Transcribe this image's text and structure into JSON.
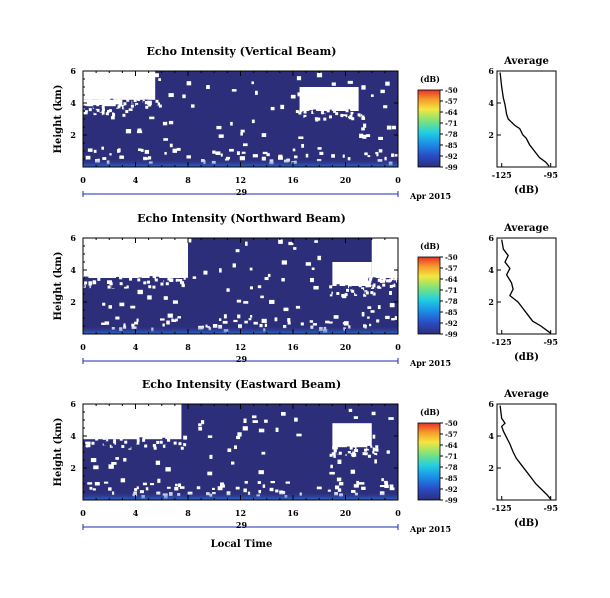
{
  "chart_data": [
    {
      "type": "heatmap",
      "title": "Echo Intensity (Vertical Beam)",
      "ylabel": "Height (km)",
      "x_ticks": [
        "0",
        "4",
        "8",
        "12",
        "16",
        "20",
        "0"
      ],
      "y_ticks": [
        "6",
        "4",
        "2"
      ],
      "xlim": [
        0,
        24
      ],
      "ylim": [
        0,
        6
      ],
      "date_label": "29",
      "month_label": "Apr 2015",
      "colorbar": {
        "label": "(dB)",
        "ticks": [
          "-50",
          "-57",
          "-64",
          "-71",
          "-78",
          "-85",
          "-92",
          "-99"
        ],
        "range": [
          -99,
          -50
        ]
      },
      "dominant_value_db": -99,
      "no_data": "white",
      "no_data_blocks": [
        {
          "x": [
            0,
            5.5
          ],
          "y": [
            4.2,
            6
          ]
        },
        {
          "x": [
            16.5,
            21
          ],
          "y": [
            3.5,
            5
          ]
        },
        {
          "x": [
            0,
            3
          ],
          "y": [
            3.8,
            4.2
          ]
        }
      ],
      "bottom_layer_km": [
        0,
        0.5
      ],
      "average_profile": {
        "title": "Average",
        "xlabel": "(dB)",
        "x_ticks": [
          "-125",
          "-95"
        ],
        "y_ticks": [
          "6",
          "4",
          "2"
        ],
        "xlim": [
          -125,
          -95
        ],
        "ylim": [
          0,
          6
        ],
        "x": [
          -126,
          -125,
          -124,
          -123,
          -122,
          -121,
          -119,
          -117,
          -114,
          -112,
          -110,
          -108,
          -105,
          -102,
          -98,
          -96
        ],
        "y": [
          5.9,
          5.0,
          4.3,
          3.9,
          3.3,
          3.0,
          2.8,
          2.6,
          2.4,
          2.0,
          1.8,
          1.4,
          1.0,
          0.6,
          0.3,
          0.05
        ]
      }
    },
    {
      "type": "heatmap",
      "title": "Echo Intensity (Northward Beam)",
      "ylabel": "Height (km)",
      "x_ticks": [
        "0",
        "4",
        "8",
        "12",
        "16",
        "20",
        "0"
      ],
      "y_ticks": [
        "6",
        "4",
        "2"
      ],
      "xlim": [
        0,
        24
      ],
      "ylim": [
        0,
        6
      ],
      "date_label": "29",
      "month_label": "Apr 2015",
      "colorbar": {
        "label": "(dB)",
        "ticks": [
          "-50",
          "-57",
          "-64",
          "-71",
          "-78",
          "-85",
          "-92",
          "-99"
        ],
        "range": [
          -99,
          -50
        ]
      },
      "dominant_value_db": -99,
      "no_data": "white",
      "no_data_blocks": [
        {
          "x": [
            0,
            8
          ],
          "y": [
            3.5,
            6
          ]
        },
        {
          "x": [
            19,
            22
          ],
          "y": [
            3.0,
            4.5
          ]
        },
        {
          "x": [
            22,
            24
          ],
          "y": [
            3.5,
            6
          ]
        }
      ],
      "bottom_layer_km": [
        0,
        0.5
      ],
      "average_profile": {
        "title": "Average",
        "xlabel": "(dB)",
        "x_ticks": [
          "-125",
          "-95"
        ],
        "y_ticks": [
          "6",
          "4",
          "2"
        ],
        "xlim": [
          -125,
          -95
        ],
        "ylim": [
          0,
          6
        ],
        "x": [
          -125,
          -124,
          -121,
          -123,
          -120,
          -122,
          -119,
          -118,
          -120,
          -115,
          -112,
          -109,
          -106,
          -101,
          -97,
          -95
        ],
        "y": [
          5.9,
          5.3,
          4.9,
          4.5,
          4.1,
          3.7,
          3.2,
          2.8,
          2.4,
          2.0,
          1.6,
          1.2,
          0.8,
          0.5,
          0.2,
          0.05
        ]
      }
    },
    {
      "type": "heatmap",
      "title": "Echo Intensity (Eastward Beam)",
      "ylabel": "Height (km)",
      "x_ticks": [
        "0",
        "4",
        "8",
        "12",
        "16",
        "20",
        "0"
      ],
      "y_ticks": [
        "6",
        "4",
        "2"
      ],
      "xlim": [
        0,
        24
      ],
      "ylim": [
        0,
        6
      ],
      "date_label": "29",
      "month_label": "Apr 2015",
      "x_title": "Local Time",
      "colorbar": {
        "label": "(dB)",
        "ticks": [
          "-50",
          "-57",
          "-64",
          "-71",
          "-78",
          "-85",
          "-92",
          "-99"
        ],
        "range": [
          -99,
          -50
        ]
      },
      "dominant_value_db": -99,
      "no_data": "white",
      "no_data_blocks": [
        {
          "x": [
            0,
            7.5
          ],
          "y": [
            3.8,
            6
          ]
        },
        {
          "x": [
            19,
            22
          ],
          "y": [
            3.3,
            4.8
          ]
        }
      ],
      "bottom_layer_km": [
        0,
        0.5
      ],
      "average_profile": {
        "title": "Average",
        "xlabel": "(dB)",
        "x_ticks": [
          "-125",
          "-95"
        ],
        "y_ticks": [
          "6",
          "4",
          "2"
        ],
        "xlim": [
          -125,
          -95
        ],
        "ylim": [
          0,
          6
        ],
        "x": [
          -126,
          -125,
          -123,
          -125,
          -124,
          -122,
          -120,
          -118,
          -116,
          -113,
          -110,
          -107,
          -104,
          -100,
          -97,
          -95
        ],
        "y": [
          5.9,
          5.1,
          4.8,
          4.6,
          4.3,
          3.9,
          3.5,
          3.0,
          2.6,
          2.2,
          1.8,
          1.4,
          1.0,
          0.6,
          0.3,
          0.05
        ]
      }
    }
  ]
}
